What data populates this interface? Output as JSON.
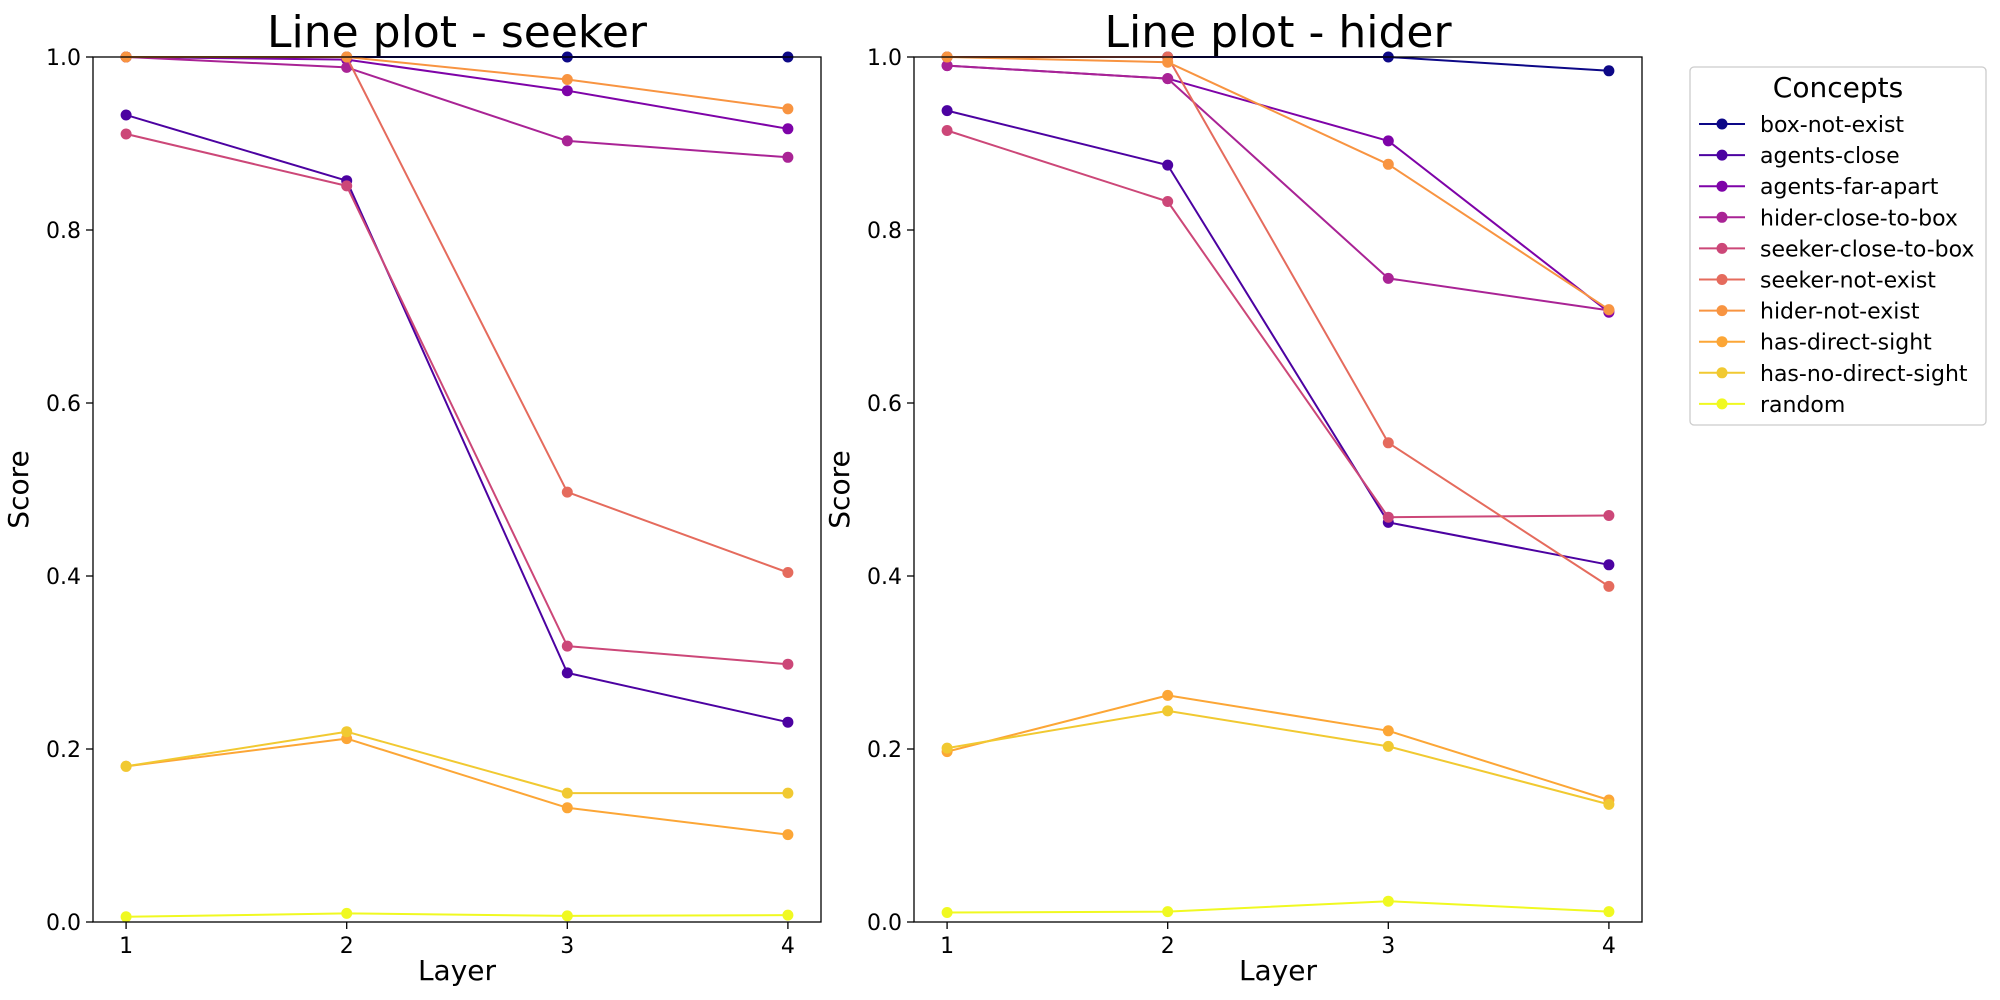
{
  "chart_data": [
    {
      "type": "line",
      "title": "Line plot - seeker",
      "xlabel": "Layer",
      "ylabel": "Score",
      "x": [
        1,
        2,
        3,
        4
      ],
      "xlim": [
        0.85,
        4.15
      ],
      "ylim": [
        0.0,
        1.0
      ],
      "yticks": [
        0.0,
        0.2,
        0.4,
        0.6,
        0.8,
        1.0
      ],
      "grid": false,
      "series": [
        {
          "name": "box-not-exist",
          "color": "#0d0887",
          "values": [
            1.0,
            1.0,
            1.0,
            1.0
          ]
        },
        {
          "name": "agents-close",
          "color": "#4c02a1",
          "values": [
            0.933,
            0.857,
            0.288,
            0.231
          ]
        },
        {
          "name": "agents-far-apart",
          "color": "#7e03a8",
          "values": [
            1.0,
            0.997,
            0.961,
            0.917
          ]
        },
        {
          "name": "hider-close-to-box",
          "color": "#a92395",
          "values": [
            1.0,
            0.988,
            0.903,
            0.884
          ]
        },
        {
          "name": "seeker-close-to-box",
          "color": "#cc4778",
          "values": [
            0.911,
            0.851,
            0.319,
            0.298
          ]
        },
        {
          "name": "seeker-not-exist",
          "color": "#e56b5d",
          "values": [
            1.0,
            1.0,
            0.497,
            0.404
          ]
        },
        {
          "name": "hider-not-exist",
          "color": "#f89441",
          "values": [
            1.0,
            1.0,
            0.974,
            0.94
          ]
        },
        {
          "name": "has-direct-sight",
          "color": "#fca636",
          "values": [
            0.18,
            0.212,
            0.132,
            0.101
          ]
        },
        {
          "name": "has-no-direct-sight",
          "color": "#f1c931",
          "values": [
            0.18,
            0.22,
            0.149,
            0.149
          ]
        },
        {
          "name": "random",
          "color": "#f0f921",
          "values": [
            0.006,
            0.01,
            0.007,
            0.008
          ]
        }
      ]
    },
    {
      "type": "line",
      "title": "Line plot - hider",
      "xlabel": "Layer",
      "ylabel": "Score",
      "x": [
        1,
        2,
        3,
        4
      ],
      "xlim": [
        0.85,
        4.15
      ],
      "ylim": [
        0.0,
        1.0
      ],
      "yticks": [
        0.0,
        0.2,
        0.4,
        0.6,
        0.8,
        1.0
      ],
      "grid": false,
      "series": [
        {
          "name": "box-not-exist",
          "color": "#0d0887",
          "values": [
            1.0,
            1.0,
            1.0,
            0.984
          ]
        },
        {
          "name": "agents-close",
          "color": "#4c02a1",
          "values": [
            0.938,
            0.875,
            0.462,
            0.413
          ]
        },
        {
          "name": "agents-far-apart",
          "color": "#7e03a8",
          "values": [
            0.99,
            0.975,
            0.903,
            0.705
          ]
        },
        {
          "name": "hider-close-to-box",
          "color": "#a92395",
          "values": [
            0.99,
            0.975,
            0.744,
            0.707
          ]
        },
        {
          "name": "seeker-close-to-box",
          "color": "#cc4778",
          "values": [
            0.915,
            0.833,
            0.468,
            0.47
          ]
        },
        {
          "name": "seeker-not-exist",
          "color": "#e56b5d",
          "values": [
            1.0,
            1.0,
            0.554,
            0.388
          ]
        },
        {
          "name": "hider-not-exist",
          "color": "#f89441",
          "values": [
            1.0,
            0.994,
            0.876,
            0.708
          ]
        },
        {
          "name": "has-direct-sight",
          "color": "#fca636",
          "values": [
            0.197,
            0.262,
            0.221,
            0.141
          ]
        },
        {
          "name": "has-no-direct-sight",
          "color": "#f1c931",
          "values": [
            0.201,
            0.244,
            0.203,
            0.136
          ]
        },
        {
          "name": "random",
          "color": "#f0f921",
          "values": [
            0.011,
            0.012,
            0.024,
            0.012
          ]
        }
      ]
    }
  ],
  "legend": {
    "title": "Concepts",
    "placement": "outside-right"
  }
}
